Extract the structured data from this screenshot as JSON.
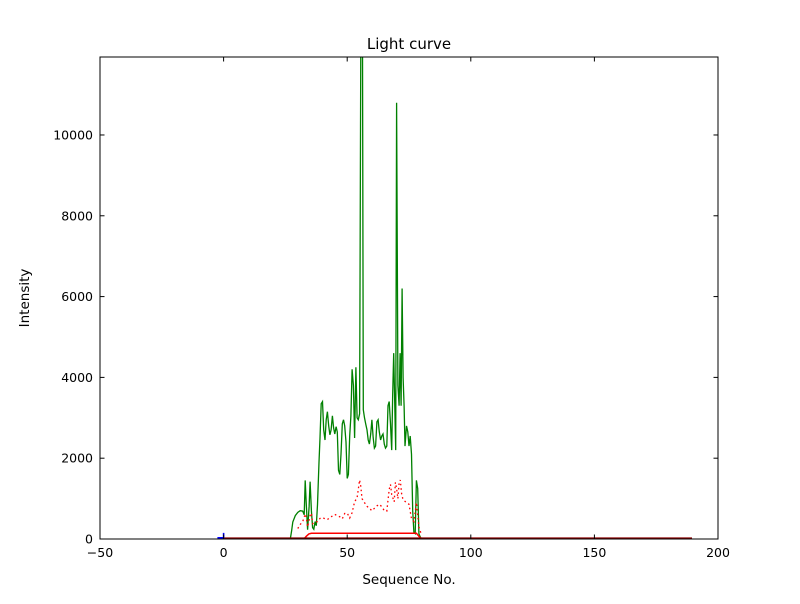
{
  "figure": {
    "background_color": "#ffffff"
  },
  "chart_data": {
    "type": "line",
    "title": "Light curve",
    "xlabel": "Sequence No.",
    "ylabel": "Intensity",
    "xlim": [
      -50,
      200
    ],
    "ylim": [
      0,
      11930
    ],
    "grid": false,
    "legend": "none",
    "xticks": {
      "values": [
        -50,
        0,
        50,
        100,
        150,
        200
      ],
      "labels": [
        "−50",
        "0",
        "50",
        "100",
        "150",
        "200"
      ]
    },
    "yticks": {
      "values": [
        0,
        2000,
        4000,
        6000,
        8000,
        10000
      ],
      "labels": [
        "0",
        "2000",
        "4000",
        "6000",
        "8000",
        "10000"
      ]
    },
    "series": [
      {
        "name": "main-lightcurve-green",
        "color": "#008000",
        "style": "solid",
        "width": 1.3,
        "points": [
          [
            27,
            0
          ],
          [
            27.5,
            200
          ],
          [
            28,
            420
          ],
          [
            29,
            580
          ],
          [
            30,
            660
          ],
          [
            31,
            700
          ],
          [
            32,
            690
          ],
          [
            32.6,
            600
          ],
          [
            33,
            1450
          ],
          [
            33.4,
            900
          ],
          [
            34,
            230
          ],
          [
            34.6,
            800
          ],
          [
            35,
            1420
          ],
          [
            35.5,
            700
          ],
          [
            36,
            280
          ],
          [
            36.5,
            240
          ],
          [
            37,
            430
          ],
          [
            37.5,
            330
          ],
          [
            38,
            850
          ],
          [
            38.6,
            1900
          ],
          [
            39,
            2500
          ],
          [
            39.5,
            3350
          ],
          [
            40,
            3400
          ],
          [
            40.5,
            2700
          ],
          [
            41,
            2450
          ],
          [
            41.5,
            2950
          ],
          [
            42,
            3150
          ],
          [
            42.5,
            2800
          ],
          [
            43,
            2580
          ],
          [
            43.5,
            2700
          ],
          [
            44,
            3050
          ],
          [
            44.5,
            2750
          ],
          [
            45,
            2600
          ],
          [
            45.5,
            2780
          ],
          [
            46,
            2650
          ],
          [
            46.5,
            1700
          ],
          [
            47,
            1600
          ],
          [
            47.5,
            2100
          ],
          [
            48,
            2850
          ],
          [
            48.5,
            2950
          ],
          [
            49,
            2800
          ],
          [
            49.5,
            2400
          ],
          [
            50,
            1500
          ],
          [
            50.5,
            1600
          ],
          [
            51,
            2550
          ],
          [
            51.5,
            3050
          ],
          [
            52,
            4200
          ],
          [
            52.5,
            3800
          ],
          [
            53,
            2500
          ],
          [
            53.5,
            4250
          ],
          [
            54,
            3000
          ],
          [
            54.5,
            2950
          ],
          [
            55,
            3100
          ],
          [
            55.5,
            12300
          ],
          [
            56.2,
            12300
          ],
          [
            56.5,
            3200
          ],
          [
            57,
            3000
          ],
          [
            57.5,
            2850
          ],
          [
            58,
            2700
          ],
          [
            58.5,
            2450
          ],
          [
            59,
            2350
          ],
          [
            59.5,
            2600
          ],
          [
            60,
            2950
          ],
          [
            60.5,
            2500
          ],
          [
            61,
            2250
          ],
          [
            61.5,
            2300
          ],
          [
            62,
            2900
          ],
          [
            62.5,
            2950
          ],
          [
            63,
            2650
          ],
          [
            63.5,
            2450
          ],
          [
            64,
            2550
          ],
          [
            64.5,
            2600
          ],
          [
            65,
            2350
          ],
          [
            65.5,
            2250
          ],
          [
            66,
            2300
          ],
          [
            66.5,
            3300
          ],
          [
            67,
            3400
          ],
          [
            67.5,
            2850
          ],
          [
            68,
            2200
          ],
          [
            68.4,
            3600
          ],
          [
            68.8,
            4600
          ],
          [
            69.2,
            3400
          ],
          [
            69.6,
            2200
          ],
          [
            70,
            10800
          ],
          [
            70.5,
            3800
          ],
          [
            71,
            3300
          ],
          [
            71.4,
            4600
          ],
          [
            71.8,
            3300
          ],
          [
            72.2,
            6200
          ],
          [
            72.6,
            4000
          ],
          [
            73,
            3300
          ],
          [
            73.4,
            2300
          ],
          [
            74,
            2800
          ],
          [
            74.5,
            2650
          ],
          [
            75,
            2300
          ],
          [
            75.5,
            2550
          ],
          [
            76,
            2100
          ],
          [
            76.5,
            700
          ],
          [
            77,
            160
          ],
          [
            77.5,
            130
          ],
          [
            78,
            1450
          ],
          [
            78.5,
            1250
          ],
          [
            79,
            130
          ],
          [
            79.5,
            60
          ],
          [
            80,
            0
          ]
        ]
      },
      {
        "name": "secondary-lightcurve-red-dotted",
        "color": "#ff0000",
        "style": "dotted",
        "width": 1.3,
        "points": [
          [
            30,
            260
          ],
          [
            31,
            360
          ],
          [
            32,
            430
          ],
          [
            33,
            620
          ],
          [
            33.5,
            520
          ],
          [
            34,
            300
          ],
          [
            35,
            580
          ],
          [
            35.5,
            640
          ],
          [
            36,
            380
          ],
          [
            37,
            410
          ],
          [
            38,
            430
          ],
          [
            39,
            510
          ],
          [
            40,
            530
          ],
          [
            41,
            500
          ],
          [
            42,
            480
          ],
          [
            43,
            530
          ],
          [
            44,
            570
          ],
          [
            45,
            610
          ],
          [
            46,
            580
          ],
          [
            47,
            550
          ],
          [
            48,
            500
          ],
          [
            49,
            630
          ],
          [
            50,
            640
          ],
          [
            51,
            520
          ],
          [
            52,
            650
          ],
          [
            53,
            920
          ],
          [
            54,
            1020
          ],
          [
            55,
            1460
          ],
          [
            55.5,
            1300
          ],
          [
            56,
            1000
          ],
          [
            57,
            900
          ],
          [
            58,
            810
          ],
          [
            59,
            760
          ],
          [
            60,
            700
          ],
          [
            61,
            760
          ],
          [
            62,
            820
          ],
          [
            63,
            860
          ],
          [
            64,
            800
          ],
          [
            65,
            700
          ],
          [
            66,
            690
          ],
          [
            67,
            1230
          ],
          [
            67.5,
            1350
          ],
          [
            68,
            1100
          ],
          [
            69,
            920
          ],
          [
            69.5,
            1400
          ],
          [
            70,
            1250
          ],
          [
            70.5,
            1000
          ],
          [
            71,
            1380
          ],
          [
            71.5,
            1460
          ],
          [
            72,
            1120
          ],
          [
            72.5,
            1000
          ],
          [
            73,
            950
          ],
          [
            74,
            900
          ],
          [
            75,
            860
          ],
          [
            76,
            500
          ],
          [
            77,
            430
          ],
          [
            78,
            900
          ],
          [
            78.5,
            600
          ],
          [
            79,
            300
          ],
          [
            80,
            110
          ]
        ]
      },
      {
        "name": "aperture-level-red-solid",
        "color": "#ff0000",
        "style": "solid",
        "width": 1.5,
        "points": [
          [
            32.5,
            0
          ],
          [
            33.5,
            70
          ],
          [
            34.5,
            125
          ],
          [
            35.5,
            140
          ],
          [
            78,
            140
          ],
          [
            79,
            70
          ],
          [
            80,
            0
          ]
        ]
      },
      {
        "name": "background-baseline-darkred",
        "color": "#8b0000",
        "style": "solid",
        "width": 1.6,
        "points": [
          [
            0,
            20
          ],
          [
            189.5,
            20
          ]
        ]
      },
      {
        "name": "reference-marker-blue",
        "color": "#0000ff",
        "style": "solid",
        "width": 1.6,
        "points": [
          [
            -2.5,
            30
          ],
          [
            0,
            30
          ],
          [
            0,
            150
          ]
        ]
      }
    ]
  }
}
